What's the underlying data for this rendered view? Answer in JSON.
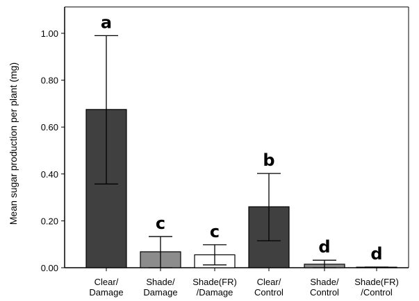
{
  "chart_data": {
    "type": "bar",
    "title": "",
    "xlabel": "",
    "ylabel": "Mean sugar production per plant (mg)",
    "ylim": [
      0,
      1.1
    ],
    "yticks": [
      "0.00",
      "0.20",
      "0.40",
      "0.60",
      "0.80",
      "1.00"
    ],
    "grid": false,
    "categories": [
      [
        "Clear/",
        "Damage"
      ],
      [
        "Shade/",
        "Damage"
      ],
      [
        "Shade(FR)",
        "/Damage"
      ],
      [
        "Clear/",
        "Control"
      ],
      [
        "Shade/",
        "Control"
      ],
      [
        "Shade(FR)",
        "/Control"
      ]
    ],
    "values": [
      0.675,
      0.068,
      0.055,
      0.26,
      0.015,
      0.002
    ],
    "error_upper": [
      0.99,
      0.133,
      0.098,
      0.402,
      0.032,
      0.003
    ],
    "error_lower": [
      0.357,
      0.0,
      0.012,
      0.115,
      0.0,
      0.001
    ],
    "significance": [
      "a",
      "c",
      "c",
      "b",
      "d",
      "d"
    ],
    "bar_colors": [
      "#404040",
      "#8c8c8c",
      "#ffffff",
      "#404040",
      "#8c8c8c",
      "#ffffff"
    ]
  }
}
